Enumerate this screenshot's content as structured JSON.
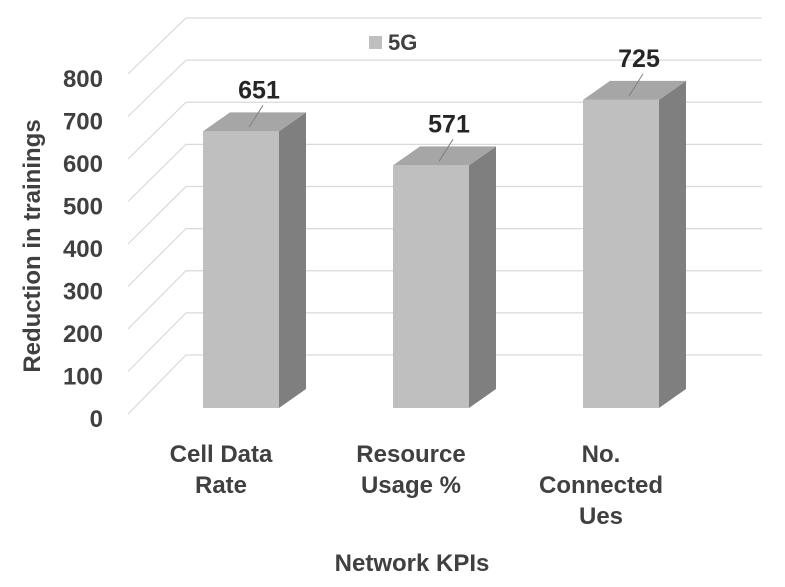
{
  "chart_data": {
    "type": "bar",
    "categories": [
      [
        "Cell Data",
        "Rate"
      ],
      [
        "Resource",
        "Usage %"
      ],
      [
        "No.",
        "Connected",
        "Ues"
      ]
    ],
    "series": [
      {
        "name": "5G",
        "values": [
          651,
          571,
          725
        ],
        "color": "#bfbfbf"
      }
    ],
    "value_labels": [
      "651",
      "571",
      "725"
    ],
    "xlabel": "Network KPIs",
    "ylabel": "Reduction in trainings",
    "ylim": [
      0,
      800
    ],
    "yticks": [
      "0",
      "100",
      "200",
      "300",
      "400",
      "500",
      "600",
      "700",
      "800"
    ],
    "grid": true,
    "legend": "top-center",
    "style": "3d-column",
    "colors": {
      "front": "#bfbfbf",
      "side": "#7f7f7f",
      "top": "#a6a6a6",
      "grid": "#d9d9d9",
      "text": "#404040"
    }
  }
}
